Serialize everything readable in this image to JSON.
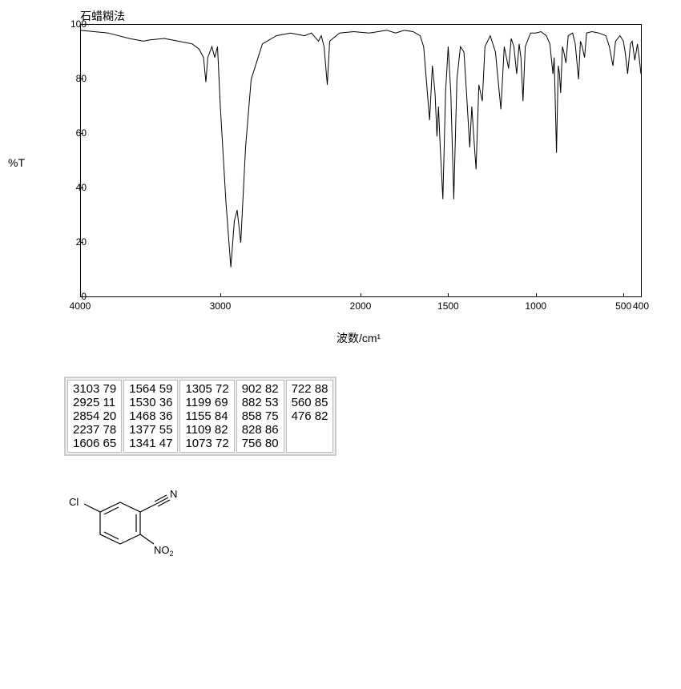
{
  "chart": {
    "type": "line",
    "title": "石蜡糊法",
    "ylabel": "%T",
    "xlabel": "波数/cm¹",
    "xlim": [
      4000,
      400
    ],
    "ylim": [
      0,
      100
    ],
    "yticks": [
      0,
      20,
      40,
      60,
      80,
      100
    ],
    "xticks": [
      4000,
      3000,
      2000,
      1500,
      1000,
      500,
      400
    ],
    "line_color": "#000000",
    "background_color": "#ffffff",
    "axis_color": "#000000",
    "tick_fontsize": 12,
    "label_fontsize": 14,
    "line_width": 1,
    "peaks": [
      {
        "wn": 4000,
        "t": 98
      },
      {
        "wn": 3900,
        "t": 97.5
      },
      {
        "wn": 3800,
        "t": 97
      },
      {
        "wn": 3650,
        "t": 95
      },
      {
        "wn": 3550,
        "t": 94
      },
      {
        "wn": 3500,
        "t": 94.5
      },
      {
        "wn": 3400,
        "t": 95
      },
      {
        "wn": 3300,
        "t": 94
      },
      {
        "wn": 3200,
        "t": 93
      },
      {
        "wn": 3150,
        "t": 91
      },
      {
        "wn": 3120,
        "t": 88
      },
      {
        "wn": 3103,
        "t": 79
      },
      {
        "wn": 3090,
        "t": 88
      },
      {
        "wn": 3060,
        "t": 92
      },
      {
        "wn": 3040,
        "t": 88
      },
      {
        "wn": 3020,
        "t": 92
      },
      {
        "wn": 3000,
        "t": 70
      },
      {
        "wn": 2960,
        "t": 35
      },
      {
        "wn": 2925,
        "t": 11
      },
      {
        "wn": 2900,
        "t": 28
      },
      {
        "wn": 2880,
        "t": 32
      },
      {
        "wn": 2854,
        "t": 20
      },
      {
        "wn": 2820,
        "t": 55
      },
      {
        "wn": 2780,
        "t": 80
      },
      {
        "wn": 2700,
        "t": 93
      },
      {
        "wn": 2600,
        "t": 96
      },
      {
        "wn": 2500,
        "t": 97
      },
      {
        "wn": 2400,
        "t": 96
      },
      {
        "wn": 2350,
        "t": 97
      },
      {
        "wn": 2300,
        "t": 94
      },
      {
        "wn": 2280,
        "t": 96
      },
      {
        "wn": 2260,
        "t": 92
      },
      {
        "wn": 2237,
        "t": 78
      },
      {
        "wn": 2220,
        "t": 94
      },
      {
        "wn": 2150,
        "t": 97
      },
      {
        "wn": 2050,
        "t": 97.5
      },
      {
        "wn": 1950,
        "t": 97
      },
      {
        "wn": 1900,
        "t": 97.5
      },
      {
        "wn": 1850,
        "t": 98
      },
      {
        "wn": 1800,
        "t": 97
      },
      {
        "wn": 1750,
        "t": 98
      },
      {
        "wn": 1700,
        "t": 97.5
      },
      {
        "wn": 1660,
        "t": 96
      },
      {
        "wn": 1640,
        "t": 92
      },
      {
        "wn": 1606,
        "t": 65
      },
      {
        "wn": 1590,
        "t": 85
      },
      {
        "wn": 1575,
        "t": 75
      },
      {
        "wn": 1564,
        "t": 59
      },
      {
        "wn": 1555,
        "t": 70
      },
      {
        "wn": 1545,
        "t": 55
      },
      {
        "wn": 1530,
        "t": 36
      },
      {
        "wn": 1515,
        "t": 75
      },
      {
        "wn": 1500,
        "t": 92
      },
      {
        "wn": 1485,
        "t": 75
      },
      {
        "wn": 1468,
        "t": 36
      },
      {
        "wn": 1450,
        "t": 80
      },
      {
        "wn": 1430,
        "t": 92
      },
      {
        "wn": 1410,
        "t": 90
      },
      {
        "wn": 1395,
        "t": 75
      },
      {
        "wn": 1377,
        "t": 55
      },
      {
        "wn": 1365,
        "t": 70
      },
      {
        "wn": 1355,
        "t": 60
      },
      {
        "wn": 1341,
        "t": 47
      },
      {
        "wn": 1325,
        "t": 78
      },
      {
        "wn": 1305,
        "t": 72
      },
      {
        "wn": 1290,
        "t": 92
      },
      {
        "wn": 1260,
        "t": 96
      },
      {
        "wn": 1230,
        "t": 90
      },
      {
        "wn": 1199,
        "t": 69
      },
      {
        "wn": 1180,
        "t": 92
      },
      {
        "wn": 1155,
        "t": 84
      },
      {
        "wn": 1140,
        "t": 95
      },
      {
        "wn": 1125,
        "t": 92
      },
      {
        "wn": 1109,
        "t": 82
      },
      {
        "wn": 1095,
        "t": 93
      },
      {
        "wn": 1085,
        "t": 88
      },
      {
        "wn": 1073,
        "t": 72
      },
      {
        "wn": 1060,
        "t": 92
      },
      {
        "wn": 1030,
        "t": 97
      },
      {
        "wn": 1000,
        "t": 97
      },
      {
        "wn": 970,
        "t": 97.5
      },
      {
        "wn": 940,
        "t": 96
      },
      {
        "wn": 920,
        "t": 93
      },
      {
        "wn": 902,
        "t": 82
      },
      {
        "wn": 895,
        "t": 88
      },
      {
        "wn": 882,
        "t": 53
      },
      {
        "wn": 872,
        "t": 85
      },
      {
        "wn": 865,
        "t": 82
      },
      {
        "wn": 858,
        "t": 75
      },
      {
        "wn": 848,
        "t": 92
      },
      {
        "wn": 840,
        "t": 90
      },
      {
        "wn": 828,
        "t": 86
      },
      {
        "wn": 815,
        "t": 96
      },
      {
        "wn": 790,
        "t": 97
      },
      {
        "wn": 775,
        "t": 93
      },
      {
        "wn": 756,
        "t": 80
      },
      {
        "wn": 745,
        "t": 94
      },
      {
        "wn": 735,
        "t": 92
      },
      {
        "wn": 722,
        "t": 88
      },
      {
        "wn": 710,
        "t": 97
      },
      {
        "wn": 680,
        "t": 97.5
      },
      {
        "wn": 640,
        "t": 97
      },
      {
        "wn": 600,
        "t": 96
      },
      {
        "wn": 580,
        "t": 92
      },
      {
        "wn": 560,
        "t": 85
      },
      {
        "wn": 545,
        "t": 94
      },
      {
        "wn": 520,
        "t": 96
      },
      {
        "wn": 500,
        "t": 94
      },
      {
        "wn": 490,
        "t": 90
      },
      {
        "wn": 476,
        "t": 82
      },
      {
        "wn": 460,
        "t": 93
      },
      {
        "wn": 450,
        "t": 94
      },
      {
        "wn": 435,
        "t": 87
      },
      {
        "wn": 420,
        "t": 93
      },
      {
        "wn": 410,
        "t": 88
      },
      {
        "wn": 400,
        "t": 82
      }
    ]
  },
  "table": {
    "border_color": "#cccccc",
    "cell_background": "#ffffff",
    "fontsize": 15,
    "columns": [
      [
        "3103 79",
        "2925 11",
        "2854 20",
        "2237 78",
        "1606 65"
      ],
      [
        "1564 59",
        "1530 36",
        "1468 36",
        "1377 55",
        "1341 47"
      ],
      [
        "1305 72",
        "1199 69",
        "1155 84",
        "1109 82",
        "1073 72"
      ],
      [
        "902 82",
        "882 53",
        "858 75",
        "828 86",
        "756 80"
      ],
      [
        "722 88",
        "560 85",
        "476 82",
        "",
        ""
      ]
    ]
  },
  "structure": {
    "labels": {
      "cl": "Cl",
      "n": "N",
      "no2": "NO",
      "sub2": "2"
    },
    "line_color": "#000000",
    "fontsize": 13
  }
}
